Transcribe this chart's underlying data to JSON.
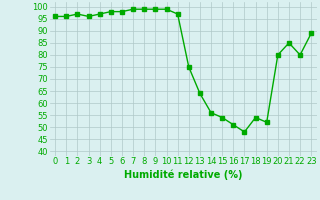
{
  "x": [
    0,
    1,
    2,
    3,
    4,
    5,
    6,
    7,
    8,
    9,
    10,
    11,
    12,
    13,
    14,
    15,
    16,
    17,
    18,
    19,
    20,
    21,
    22,
    23
  ],
  "y": [
    96,
    96,
    97,
    96,
    97,
    98,
    98,
    99,
    99,
    99,
    99,
    97,
    75,
    64,
    56,
    54,
    51,
    48,
    54,
    52,
    80,
    85,
    80,
    89
  ],
  "line_color": "#00aa00",
  "marker": "s",
  "markersize": 2.5,
  "linewidth": 1.0,
  "xlabel": "Humidité relative (%)",
  "xlabel_color": "#00aa00",
  "xlabel_fontsize": 7,
  "ylabel_ticks": [
    40,
    45,
    50,
    55,
    60,
    65,
    70,
    75,
    80,
    85,
    90,
    95,
    100
  ],
  "ylim": [
    38,
    102
  ],
  "xlim": [
    -0.5,
    23.5
  ],
  "bg_color": "#daf0f0",
  "grid_color": "#b0c8c8",
  "tick_fontsize": 6,
  "tick_color": "#00aa00"
}
